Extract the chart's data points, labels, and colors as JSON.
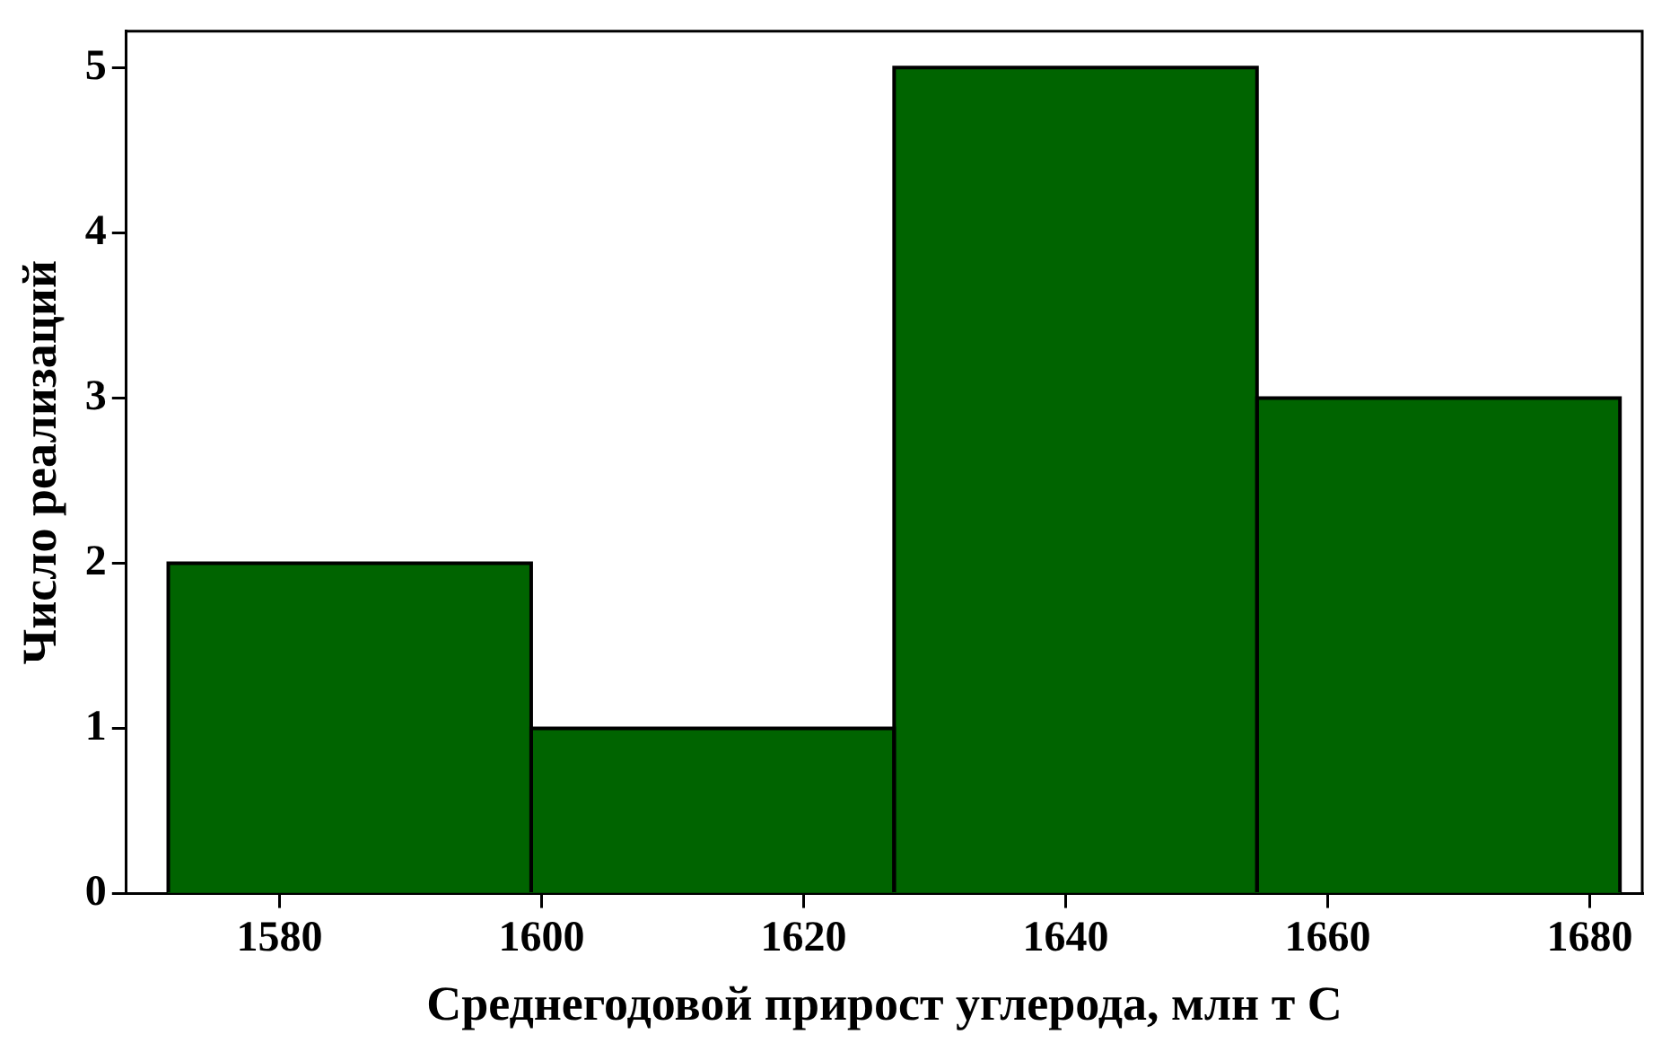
{
  "chart_data": {
    "type": "histogram",
    "xlabel": "Среднегодовой прирост углерода, млн т C",
    "ylabel": "Число реализаций",
    "bins": [
      1571.5,
      1599.2,
      1626.9,
      1654.6,
      1682.3
    ],
    "values": [
      2,
      1,
      5,
      3
    ],
    "color": "#006400",
    "xlim": [
      1568.3,
      1684
    ],
    "xticks": [
      1580,
      1600,
      1620,
      1640,
      1660,
      1680
    ],
    "ylim": [
      0,
      5.22
    ],
    "yticks": [
      0,
      1,
      2,
      3,
      4,
      5
    ],
    "grid": false,
    "legend": false
  }
}
